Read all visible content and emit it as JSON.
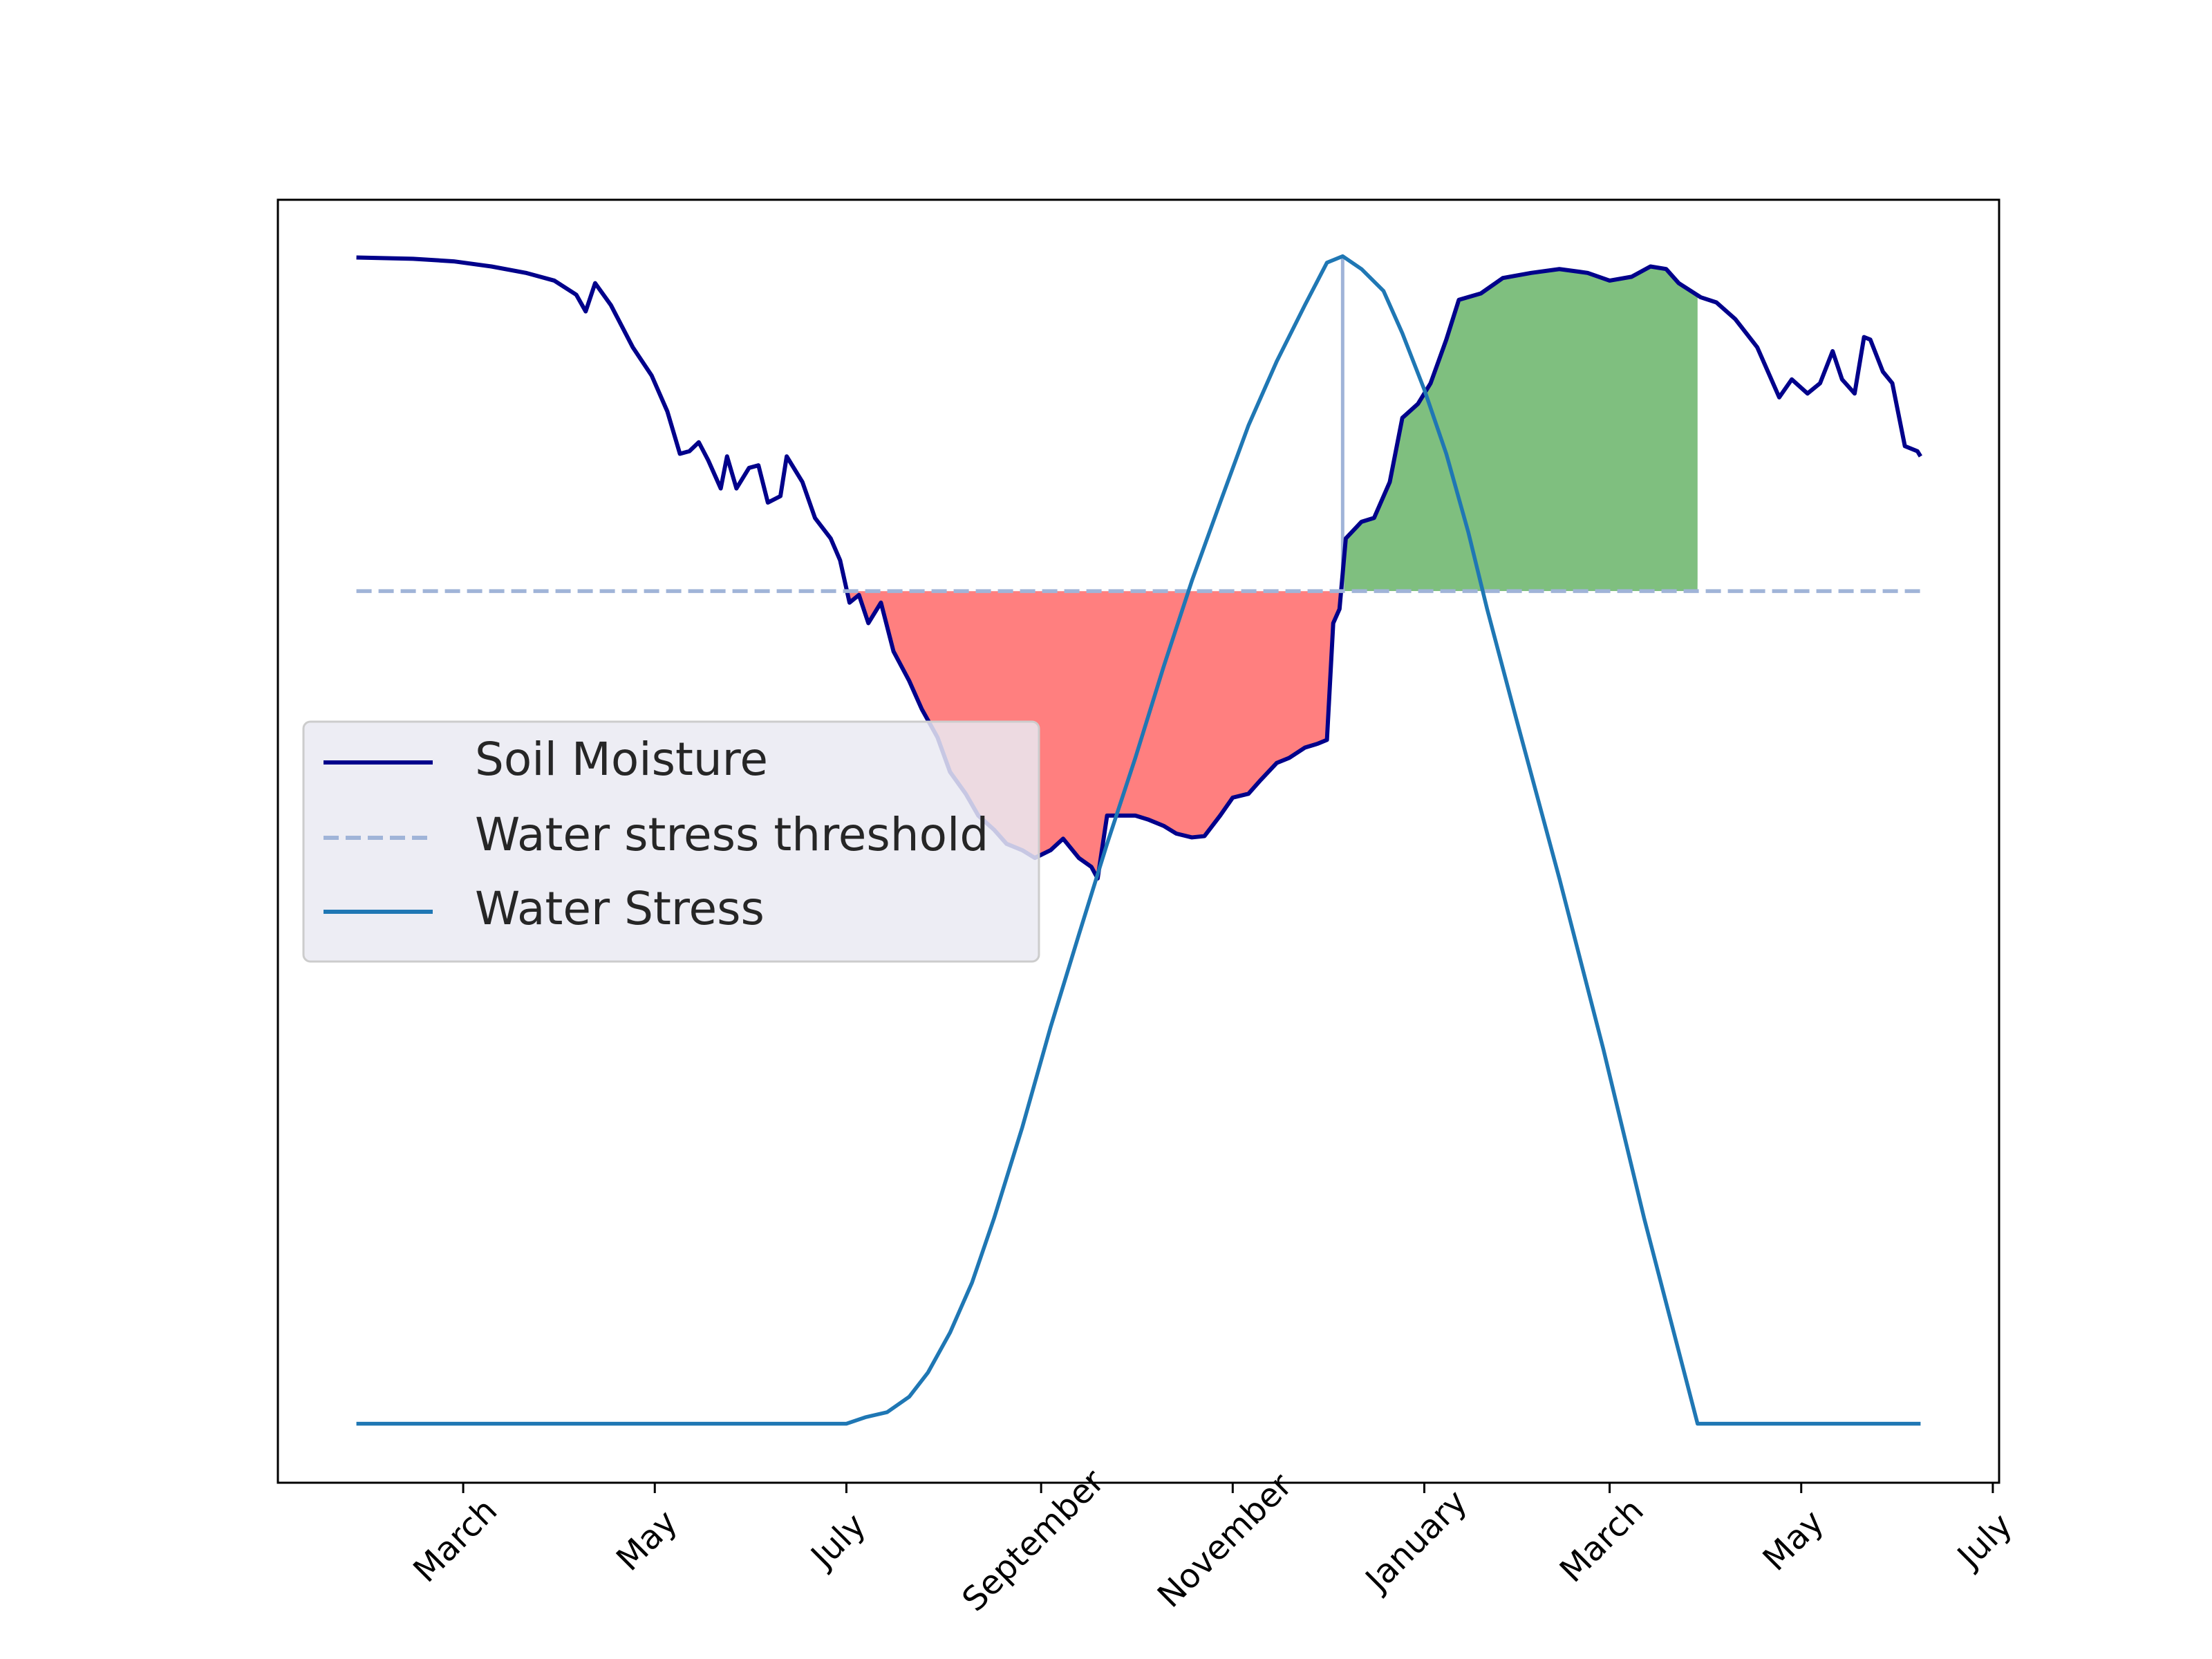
{
  "chart_data": {
    "type": "line",
    "xlim": [
      -59,
      489
    ],
    "ylim": [
      0,
      100
    ],
    "xticks": [
      {
        "value": 0,
        "label": "March"
      },
      {
        "value": 61,
        "label": "May"
      },
      {
        "value": 122,
        "label": "July"
      },
      {
        "value": 184,
        "label": "September"
      },
      {
        "value": 245,
        "label": "November"
      },
      {
        "value": 306,
        "label": "January"
      },
      {
        "value": 365,
        "label": "March"
      },
      {
        "value": 426,
        "label": "May"
      },
      {
        "value": 487,
        "label": "July"
      }
    ],
    "legend": "center left",
    "series": [
      {
        "name": "Soil Moisture",
        "color": "#00008b",
        "x": [
          -34,
          -16,
          -3,
          9,
          20,
          29,
          36,
          39,
          42,
          47,
          54,
          60,
          65,
          69,
          72,
          75,
          78,
          82,
          84,
          87,
          91,
          94,
          97,
          101,
          103,
          108,
          112,
          117,
          120,
          123,
          126,
          129,
          133,
          137,
          142,
          146,
          151,
          155,
          160,
          164,
          169,
          173,
          178,
          182,
          187,
          191,
          196,
          200,
          202,
          205,
          209,
          214,
          218,
          223,
          227,
          232,
          236,
          241,
          245,
          250,
          254,
          259,
          263,
          268,
          272,
          275,
          277,
          279,
          281,
          286,
          290,
          295,
          299,
          304,
          308,
          313,
          317,
          324,
          331,
          340,
          349,
          358,
          365,
          372,
          378,
          383,
          387,
          394,
          399,
          405,
          412,
          419,
          423,
          428,
          432,
          436,
          439,
          443,
          446,
          448,
          452,
          455,
          459,
          463,
          464
        ],
        "values": [
          95.5,
          95.4,
          95.2,
          94.8,
          94.3,
          93.7,
          92.6,
          91.3,
          93.5,
          91.8,
          88.5,
          86.3,
          83.5,
          80.2,
          80.4,
          81.1,
          79.7,
          77.5,
          80.0,
          77.5,
          79.1,
          79.3,
          76.4,
          76.9,
          80.0,
          78.0,
          75.2,
          73.6,
          71.9,
          68.6,
          69.2,
          67.0,
          68.6,
          64.8,
          62.5,
          60.3,
          58.1,
          55.4,
          53.7,
          52.0,
          50.9,
          49.8,
          49.3,
          48.7,
          49.3,
          50.2,
          48.7,
          48.0,
          47.1,
          52.0,
          52.0,
          52.0,
          51.7,
          51.2,
          50.6,
          50.3,
          50.4,
          52.0,
          53.4,
          53.7,
          54.8,
          56.1,
          56.5,
          57.3,
          57.6,
          57.9,
          67.0,
          68.1,
          73.6,
          74.9,
          75.2,
          78.0,
          83.0,
          84.1,
          85.7,
          89.1,
          92.2,
          92.7,
          93.9,
          94.3,
          94.6,
          94.3,
          93.7,
          94.0,
          94.8,
          94.6,
          93.5,
          92.4,
          92.0,
          90.7,
          88.5,
          84.6,
          86.0,
          84.9,
          85.7,
          88.2,
          86.0,
          84.9,
          89.3,
          89.1,
          86.6,
          85.7,
          80.8,
          80.4,
          80.0
        ]
      },
      {
        "name": "Water stress threshold",
        "color": "#a0b4d8",
        "dashed": true,
        "x": [
          -34,
          464
        ],
        "values": [
          69.5,
          69.5
        ]
      },
      {
        "name": "Water Stress",
        "color": "#1f77b4",
        "x": [
          -34,
          122,
          128,
          135,
          142,
          148,
          155,
          162,
          169,
          178,
          187,
          196,
          205,
          214,
          223,
          232,
          241,
          250,
          259,
          268,
          275,
          280,
          286,
          293,
          299,
          306,
          313,
          320,
          326,
          335,
          349,
          363,
          376,
          393,
          464
        ],
        "values": [
          4.6,
          4.6,
          5.1,
          5.5,
          6.7,
          8.6,
          11.7,
          15.6,
          20.6,
          27.7,
          35.5,
          42.7,
          49.8,
          56.5,
          63.6,
          70.3,
          76.4,
          82.4,
          87.4,
          91.8,
          95.1,
          95.6,
          94.6,
          92.9,
          89.6,
          85.2,
          80.2,
          74.1,
          68.1,
          59.8,
          47.1,
          33.8,
          20.6,
          4.6,
          4.6
        ]
      }
    ],
    "fills": [
      {
        "color": "#ff7f7f",
        "x": [
          123,
          280
        ],
        "side": "below"
      },
      {
        "color": "#7fbf7f",
        "x": [
          280,
          393
        ],
        "side": "above"
      }
    ],
    "vline": {
      "x": 280,
      "y": [
        69.5,
        95.6
      ],
      "color": "#a0b4d8"
    }
  }
}
